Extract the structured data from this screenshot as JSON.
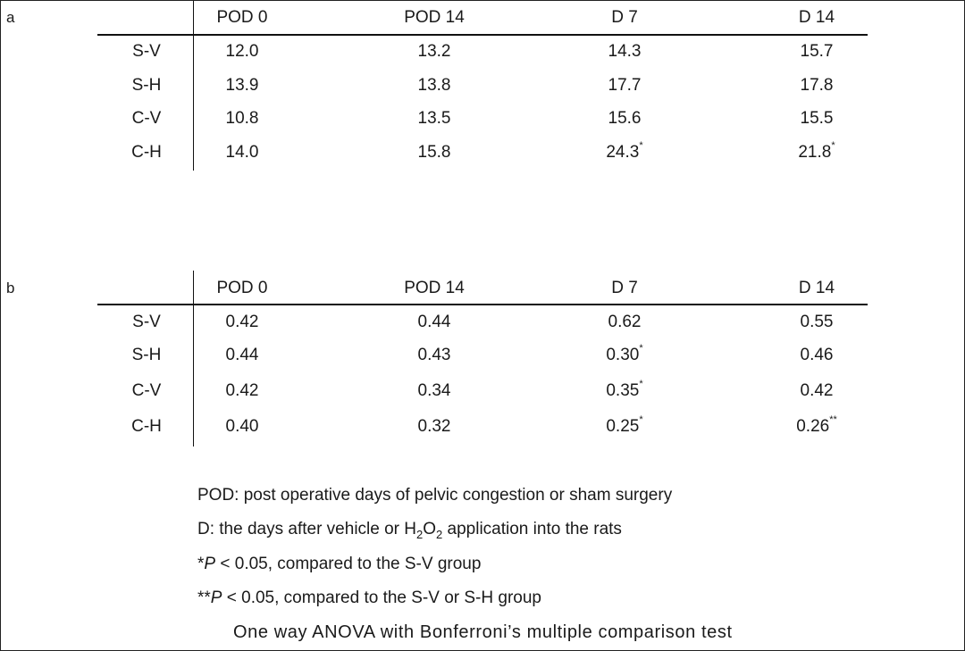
{
  "panels": [
    {
      "label": "a",
      "columns": [
        "POD 0",
        "POD 14",
        "D 7",
        "D 14"
      ],
      "rows": [
        {
          "group": "S-V",
          "values": [
            "12.0",
            "13.2",
            "14.3",
            "15.7"
          ],
          "marks": [
            "",
            "",
            "",
            ""
          ]
        },
        {
          "group": "S-H",
          "values": [
            "13.9",
            "13.8",
            "17.7",
            "17.8"
          ],
          "marks": [
            "",
            "",
            "",
            ""
          ]
        },
        {
          "group": "C-V",
          "values": [
            "10.8",
            "13.5",
            "15.6",
            "15.5"
          ],
          "marks": [
            "",
            "",
            "",
            ""
          ]
        },
        {
          "group": "C-H",
          "values": [
            "14.0",
            "15.8",
            "24.3",
            "21.8"
          ],
          "marks": [
            "",
            "",
            "*",
            "*"
          ]
        }
      ]
    },
    {
      "label": "b",
      "columns": [
        "POD 0",
        "POD 14",
        "D 7",
        "D 14"
      ],
      "rows": [
        {
          "group": "S-V",
          "values": [
            "0.42",
            "0.44",
            "0.62",
            "0.55"
          ],
          "marks": [
            "",
            "",
            "",
            ""
          ]
        },
        {
          "group": "S-H",
          "values": [
            "0.44",
            "0.43",
            "0.30",
            "0.46"
          ],
          "marks": [
            "",
            "",
            "*",
            ""
          ]
        },
        {
          "group": "C-V",
          "values": [
            "0.42",
            "0.34",
            "0.35",
            "0.42"
          ],
          "marks": [
            "",
            "",
            "*",
            ""
          ]
        },
        {
          "group": "C-H",
          "values": [
            "0.40",
            "0.32",
            "0.25",
            "0.26"
          ],
          "marks": [
            "",
            "",
            "*",
            "**"
          ]
        }
      ]
    }
  ],
  "notes": {
    "pod": "POD: post operative days of pelvic congestion or sham surgery",
    "d_prefix": "D: the days after vehicle or H",
    "d_sub1": "2",
    "d_mid": "O",
    "d_sub2": "2",
    "d_suffix": " application into the rats",
    "star1_mark": "*",
    "p_symbol": "P",
    "star1_text": " < 0.05, compared to the S-V group",
    "star2_mark": "**",
    "star2_text": " < 0.05, compared to the S-V or S-H group",
    "method": "One way ANOVA with Bonferroni’s multiple comparison test"
  }
}
